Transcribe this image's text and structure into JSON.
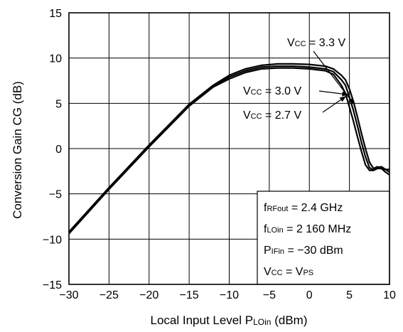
{
  "chart_data": {
    "type": "line",
    "xlabel": "Local Input Level  P",
    "xlabel_sub": "LOin",
    "xlabel_unit": "(dBm)",
    "ylabel": "Conversion Gain  CG  (dB)",
    "xlim": [
      -30,
      10
    ],
    "ylim": [
      -15,
      15
    ],
    "xticks": [
      -30,
      -25,
      -20,
      -15,
      -10,
      -5,
      0,
      5,
      10
    ],
    "yticks": [
      -15,
      -10,
      -5,
      0,
      5,
      10,
      15
    ],
    "xtick_labels": [
      "−30",
      "−25",
      "−20",
      "−15",
      "−10",
      "−5",
      "0",
      "5",
      "10"
    ],
    "ytick_labels": [
      "−15",
      "−10",
      "−5",
      "0",
      "5",
      "10",
      "15"
    ],
    "grid": true,
    "series": [
      {
        "name_main": "V",
        "name_sub": "CC",
        "name_rest": " = 3.3 V",
        "x": [
          -30,
          -25,
          -20,
          -15,
          -12,
          -10,
          -8,
          -6,
          -4,
          -2,
          0,
          2,
          3,
          4,
          4.5,
          5,
          5.5,
          6,
          6.5,
          7,
          7.5,
          8,
          8.5,
          9,
          9.5,
          10
        ],
        "y": [
          -9.2,
          -4.3,
          0.4,
          4.9,
          7.0,
          8.1,
          8.8,
          9.2,
          9.35,
          9.35,
          9.3,
          9.1,
          8.8,
          8.1,
          7.6,
          6.6,
          5.2,
          3.5,
          1.7,
          0.0,
          -1.5,
          -2.2,
          -2.0,
          -2.2,
          -2.6,
          -2.9
        ]
      },
      {
        "name_main": "V",
        "name_sub": "CC",
        "name_rest": " = 3.0 V",
        "x": [
          -30,
          -25,
          -20,
          -15,
          -12,
          -10,
          -8,
          -6,
          -4,
          -2,
          0,
          2,
          3,
          4,
          4.5,
          5,
          5.5,
          6,
          6.5,
          7,
          7.5,
          8,
          8.5,
          9,
          9.5,
          10
        ],
        "y": [
          -9.3,
          -4.4,
          0.3,
          4.8,
          6.9,
          7.9,
          8.6,
          9.0,
          9.1,
          9.1,
          9.0,
          8.8,
          8.5,
          7.6,
          7.0,
          5.7,
          4.2,
          2.5,
          0.7,
          -0.9,
          -2.1,
          -2.4,
          -2.1,
          -2.0,
          -2.3,
          -2.6
        ]
      },
      {
        "name_main": "V",
        "name_sub": "CC",
        "name_rest": " = 2.7 V",
        "x": [
          -30,
          -25,
          -20,
          -15,
          -12,
          -10,
          -8,
          -6,
          -4,
          -2,
          0,
          2,
          3,
          4,
          4.5,
          5,
          5.5,
          6,
          6.5,
          7,
          7.5,
          8,
          8.5,
          9,
          9.5,
          10
        ],
        "y": [
          -9.4,
          -4.5,
          0.2,
          4.7,
          6.8,
          7.7,
          8.4,
          8.8,
          8.9,
          8.9,
          8.8,
          8.6,
          8.2,
          7.0,
          6.1,
          4.6,
          3.0,
          1.3,
          -0.3,
          -1.8,
          -2.4,
          -2.4,
          -2.2,
          -2.2,
          -2.3,
          -2.3
        ]
      }
    ],
    "annotations": [
      {
        "main": "f",
        "sub": "RFout",
        "rest": " = 2.4 GHz"
      },
      {
        "main": "f",
        "sub": "LOin",
        "rest": " = 2 160 MHz"
      },
      {
        "main": "P",
        "sub": "IFin",
        "rest": " = −30 dBm"
      },
      {
        "main": "V",
        "sub": "CC",
        "rest": " = V",
        "sub2": "PS"
      }
    ]
  }
}
